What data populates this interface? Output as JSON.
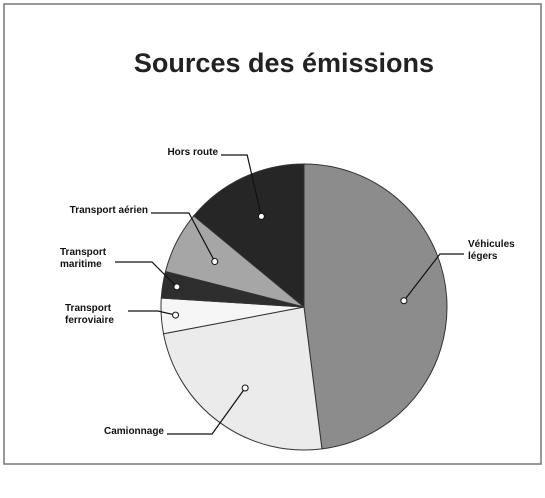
{
  "chart_data": {
    "type": "pie",
    "title": "Sources des émissions",
    "categories": [
      "Véhicules légers",
      "Camionnage",
      "Transport ferroviaire",
      "Transport maritime",
      "Transport aérien",
      "Hors route"
    ],
    "values": [
      48,
      24,
      4,
      3,
      7,
      14
    ],
    "colors": [
      "#8c8c8c",
      "#ebebeb",
      "#f6f6f6",
      "#2e2e2e",
      "#a6a6a6",
      "#262626"
    ]
  }
}
